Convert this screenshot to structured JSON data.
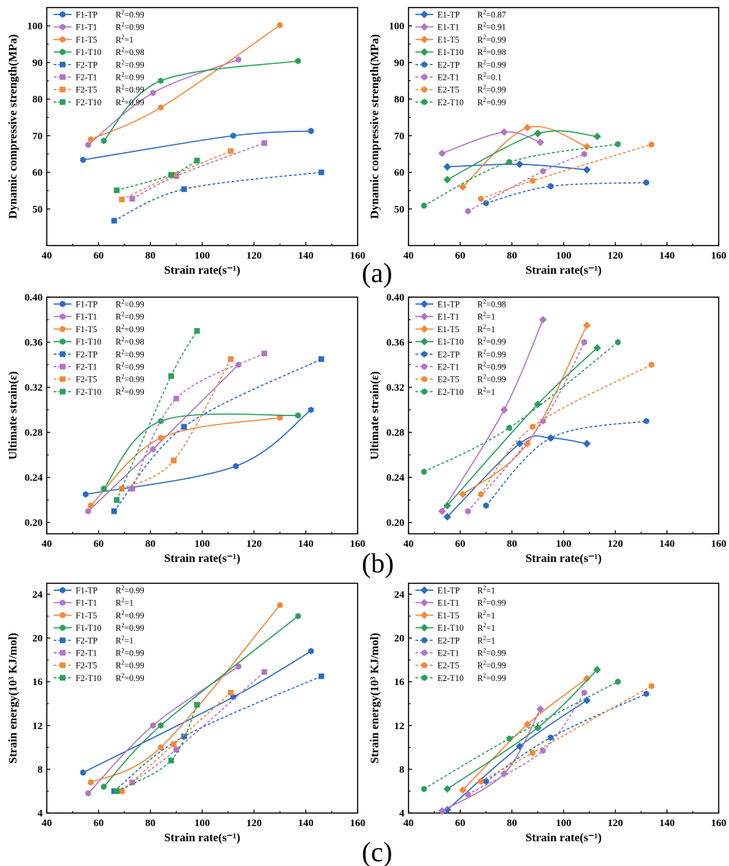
{
  "figure": {
    "panel_labels": [
      "(a)",
      "(b)",
      "(c)"
    ],
    "colors": {
      "TP": "#2b6cc4",
      "T1": "#b474c8",
      "T5": "#f5873a",
      "T10": "#2aa05a"
    }
  },
  "chart_data": [
    {
      "id": "a-left",
      "type": "scatter",
      "xlabel": "Strain rate(s⁻¹)",
      "ylabel": "Dynamic compressive strength(MPa)",
      "xlim": [
        40,
        160
      ],
      "ylim": [
        40,
        105
      ],
      "xticks": [
        40,
        60,
        80,
        100,
        120,
        140,
        160
      ],
      "yticks": [
        50,
        60,
        70,
        80,
        90,
        100
      ],
      "legend_position": "top-left",
      "series": [
        {
          "name": "F1-TP",
          "r2": "0.99",
          "group": "TP",
          "marker": "hex",
          "dashed": false,
          "x": [
            54,
            112,
            142
          ],
          "y": [
            63.4,
            70,
            71.3
          ]
        },
        {
          "name": "F1-T1",
          "r2": "0.99",
          "group": "T1",
          "marker": "hex",
          "dashed": false,
          "x": [
            56,
            81,
            114
          ],
          "y": [
            67.5,
            81.7,
            90.8
          ]
        },
        {
          "name": "F1-T5",
          "r2": "1",
          "group": "T5",
          "marker": "hex",
          "dashed": false,
          "x": [
            57,
            84,
            130
          ],
          "y": [
            69,
            77.7,
            100.2
          ]
        },
        {
          "name": "F1-T10",
          "r2": "0.98",
          "group": "T10",
          "marker": "hex",
          "dashed": false,
          "x": [
            62,
            84,
            137
          ],
          "y": [
            68.6,
            85,
            90.4
          ]
        },
        {
          "name": "F2-TP",
          "r2": "0.99",
          "group": "TP",
          "marker": "square",
          "dashed": true,
          "x": [
            66,
            93,
            146
          ],
          "y": [
            46.8,
            55.4,
            60
          ]
        },
        {
          "name": "F2-T1",
          "r2": "0.99",
          "group": "T1",
          "marker": "square",
          "dashed": true,
          "x": [
            73,
            90,
            124
          ],
          "y": [
            52.8,
            59,
            68
          ]
        },
        {
          "name": "F2-T5",
          "r2": "0.99",
          "group": "T5",
          "marker": "square",
          "dashed": true,
          "x": [
            69,
            89,
            111
          ],
          "y": [
            52.6,
            59.3,
            65.8
          ]
        },
        {
          "name": "F2-T10",
          "r2": "0.99",
          "group": "T10",
          "marker": "square",
          "dashed": true,
          "x": [
            67,
            88,
            98
          ],
          "y": [
            55.1,
            59.3,
            63.2
          ]
        }
      ]
    },
    {
      "id": "a-right",
      "type": "scatter",
      "xlabel": "Strain rate(s⁻¹)",
      "ylabel": "Dynamic compressive strength(MPa)",
      "xlim": [
        40,
        160
      ],
      "ylim": [
        40,
        105
      ],
      "xticks": [
        40,
        60,
        80,
        100,
        120,
        140,
        160
      ],
      "yticks": [
        50,
        60,
        70,
        80,
        90,
        100
      ],
      "legend_position": "top-left",
      "series": [
        {
          "name": "E1-TP",
          "r2": "0.87",
          "group": "TP",
          "marker": "diamond",
          "dashed": false,
          "x": [
            55,
            83,
            109
          ],
          "y": [
            61.5,
            62.2,
            60.7
          ]
        },
        {
          "name": "E1-T1",
          "r2": "0.91",
          "group": "T1",
          "marker": "diamond",
          "dashed": false,
          "x": [
            53,
            77,
            91
          ],
          "y": [
            65.2,
            71,
            68.2
          ]
        },
        {
          "name": "E1-T5",
          "r2": "0.99",
          "group": "T5",
          "marker": "diamond",
          "dashed": false,
          "x": [
            61,
            86,
            109
          ],
          "y": [
            56,
            72.2,
            67
          ]
        },
        {
          "name": "E1-T10",
          "r2": "0.98",
          "group": "T10",
          "marker": "diamond",
          "dashed": false,
          "x": [
            55,
            90,
            113
          ],
          "y": [
            58,
            70.6,
            69.8
          ]
        },
        {
          "name": "E2-TP",
          "r2": "0.99",
          "group": "TP",
          "marker": "hex",
          "dashed": true,
          "x": [
            70,
            95,
            132
          ],
          "y": [
            51.6,
            56.2,
            57.2
          ]
        },
        {
          "name": "E2-T1",
          "r2": "0.1",
          "group": "T1",
          "marker": "hex",
          "dashed": true,
          "x": [
            63,
            92,
            108
          ],
          "y": [
            49.4,
            60.3,
            65
          ]
        },
        {
          "name": "E2-T5",
          "r2": "0.99",
          "group": "T5",
          "marker": "hex",
          "dashed": true,
          "x": [
            68,
            88,
            134
          ],
          "y": [
            52.8,
            57.7,
            67.6
          ]
        },
        {
          "name": "E2-T10",
          "r2": "0.99",
          "group": "T10",
          "marker": "hex",
          "dashed": true,
          "x": [
            46,
            79,
            121
          ],
          "y": [
            50.9,
            62.8,
            67.7
          ]
        }
      ]
    },
    {
      "id": "b-left",
      "type": "scatter",
      "xlabel": "Strain rate(s⁻¹)",
      "ylabel": "Ultimate strain(ε)",
      "xlim": [
        40,
        160
      ],
      "ylim": [
        0.19,
        0.4
      ],
      "xticks": [
        40,
        60,
        80,
        100,
        120,
        140,
        160
      ],
      "yticks": [
        0.2,
        0.24,
        0.28,
        0.32,
        0.36,
        0.4
      ],
      "yformat": "2",
      "legend_position": "top-left",
      "series": [
        {
          "name": "F1-TP",
          "r2": "0.99",
          "group": "TP",
          "marker": "hex",
          "dashed": false,
          "x": [
            55,
            113,
            142
          ],
          "y": [
            0.225,
            0.25,
            0.3
          ]
        },
        {
          "name": "F1-T1",
          "r2": "0.99",
          "group": "T1",
          "marker": "hex",
          "dashed": false,
          "x": [
            56,
            81,
            114
          ],
          "y": [
            0.21,
            0.265,
            0.34
          ]
        },
        {
          "name": "F1-T5",
          "r2": "0.99",
          "group": "T5",
          "marker": "hex",
          "dashed": false,
          "x": [
            57,
            84,
            130
          ],
          "y": [
            0.215,
            0.275,
            0.293
          ]
        },
        {
          "name": "F1-T10",
          "r2": "0.98",
          "group": "T10",
          "marker": "hex",
          "dashed": false,
          "x": [
            62,
            84,
            137
          ],
          "y": [
            0.23,
            0.29,
            0.295
          ]
        },
        {
          "name": "F2-TP",
          "r2": "0.99",
          "group": "TP",
          "marker": "square",
          "dashed": true,
          "x": [
            66,
            93,
            146
          ],
          "y": [
            0.21,
            0.285,
            0.345
          ]
        },
        {
          "name": "F2-T1",
          "r2": "0.99",
          "group": "T1",
          "marker": "square",
          "dashed": true,
          "x": [
            73,
            90,
            124
          ],
          "y": [
            0.23,
            0.31,
            0.35
          ]
        },
        {
          "name": "F2-T5",
          "r2": "0.99",
          "group": "T5",
          "marker": "square",
          "dashed": true,
          "x": [
            69,
            89,
            111
          ],
          "y": [
            0.23,
            0.255,
            0.345
          ]
        },
        {
          "name": "F2-T10",
          "r2": "0.99",
          "group": "T10",
          "marker": "square",
          "dashed": true,
          "x": [
            67,
            88,
            98
          ],
          "y": [
            0.22,
            0.33,
            0.37
          ]
        }
      ]
    },
    {
      "id": "b-right",
      "type": "scatter",
      "xlabel": "Strain rate(s⁻¹)",
      "ylabel": "Ultimate strain(ε)",
      "xlim": [
        40,
        160
      ],
      "ylim": [
        0.19,
        0.4
      ],
      "xticks": [
        40,
        60,
        80,
        100,
        120,
        140,
        160
      ],
      "yticks": [
        0.2,
        0.24,
        0.28,
        0.32,
        0.36,
        0.4
      ],
      "yformat": "2",
      "legend_position": "top-left",
      "series": [
        {
          "name": "E1-TP",
          "r2": "0.98",
          "group": "TP",
          "marker": "diamond",
          "dashed": false,
          "x": [
            55,
            83,
            95,
            109
          ],
          "y": [
            0.205,
            0.27,
            0.275,
            0.27
          ]
        },
        {
          "name": "E1-T1",
          "r2": "1",
          "group": "T1",
          "marker": "diamond",
          "dashed": false,
          "x": [
            53,
            77,
            92
          ],
          "y": [
            0.21,
            0.3,
            0.38
          ]
        },
        {
          "name": "E1-T5",
          "r2": "1",
          "group": "T5",
          "marker": "diamond",
          "dashed": false,
          "x": [
            61,
            86,
            109
          ],
          "y": [
            0.225,
            0.27,
            0.375
          ]
        },
        {
          "name": "E1-T10",
          "r2": "0.99",
          "group": "T10",
          "marker": "diamond",
          "dashed": false,
          "x": [
            55,
            90,
            113
          ],
          "y": [
            0.215,
            0.305,
            0.355
          ]
        },
        {
          "name": "E2-TP",
          "r2": "0.99",
          "group": "TP",
          "marker": "hex",
          "dashed": true,
          "x": [
            70,
            95,
            132
          ],
          "y": [
            0.215,
            0.275,
            0.29
          ]
        },
        {
          "name": "E2-T1",
          "r2": "0.99",
          "group": "T1",
          "marker": "hex",
          "dashed": true,
          "x": [
            63,
            92,
            108
          ],
          "y": [
            0.21,
            0.29,
            0.36
          ]
        },
        {
          "name": "E2-T5",
          "r2": "0.99",
          "group": "T5",
          "marker": "hex",
          "dashed": true,
          "x": [
            68,
            88,
            134
          ],
          "y": [
            0.225,
            0.285,
            0.34
          ]
        },
        {
          "name": "E2-T10",
          "r2": "1",
          "group": "T10",
          "marker": "hex",
          "dashed": true,
          "x": [
            46,
            79,
            121
          ],
          "y": [
            0.245,
            0.284,
            0.36
          ]
        }
      ]
    },
    {
      "id": "c-left",
      "type": "scatter",
      "xlabel": "Strain rate(s⁻¹)",
      "ylabel": "Strain energy(10³ KJ/mol)",
      "xlim": [
        40,
        160
      ],
      "ylim": [
        4,
        25
      ],
      "xticks": [
        40,
        60,
        80,
        100,
        120,
        140,
        160
      ],
      "yticks": [
        4,
        8,
        12,
        16,
        20,
        24
      ],
      "legend_position": "top-left",
      "series": [
        {
          "name": "F1-TP",
          "r2": "0.99",
          "group": "TP",
          "marker": "hex",
          "dashed": false,
          "x": [
            54,
            112,
            142
          ],
          "y": [
            7.7,
            14.6,
            18.8
          ]
        },
        {
          "name": "F1-T1",
          "r2": "1",
          "group": "T1",
          "marker": "hex",
          "dashed": false,
          "x": [
            56,
            81,
            114
          ],
          "y": [
            5.8,
            12,
            17.4
          ]
        },
        {
          "name": "F1-T5",
          "r2": "0.99",
          "group": "T5",
          "marker": "hex",
          "dashed": false,
          "x": [
            57,
            84,
            130
          ],
          "y": [
            6.8,
            10,
            23
          ]
        },
        {
          "name": "F1-T10",
          "r2": "0.99",
          "group": "T10",
          "marker": "hex",
          "dashed": false,
          "x": [
            62,
            84,
            137
          ],
          "y": [
            6.4,
            12,
            22
          ]
        },
        {
          "name": "F2-TP",
          "r2": "1",
          "group": "TP",
          "marker": "square",
          "dashed": true,
          "x": [
            66,
            93,
            146
          ],
          "y": [
            6,
            11,
            16.5
          ]
        },
        {
          "name": "F2-T1",
          "r2": "0.99",
          "group": "T1",
          "marker": "square",
          "dashed": true,
          "x": [
            73,
            90,
            124
          ],
          "y": [
            6.8,
            9.8,
            16.9
          ]
        },
        {
          "name": "F2-T5",
          "r2": "0.99",
          "group": "T5",
          "marker": "square",
          "dashed": true,
          "x": [
            69,
            89,
            111
          ],
          "y": [
            6,
            10.3,
            15
          ]
        },
        {
          "name": "F2-T10",
          "r2": "0.99",
          "group": "T10",
          "marker": "square",
          "dashed": true,
          "x": [
            67,
            88,
            98
          ],
          "y": [
            6,
            8.8,
            13.9
          ]
        }
      ]
    },
    {
      "id": "c-right",
      "type": "scatter",
      "xlabel": "Strain rate(s⁻¹)",
      "ylabel": "Strain energy(10³ KJ/mol)",
      "xlim": [
        40,
        160
      ],
      "ylim": [
        4,
        25
      ],
      "xticks": [
        40,
        60,
        80,
        100,
        120,
        140,
        160
      ],
      "yticks": [
        4,
        8,
        12,
        16,
        20,
        24
      ],
      "legend_position": "top-left",
      "series": [
        {
          "name": "E1-TP",
          "r2": "1",
          "group": "TP",
          "marker": "diamond",
          "dashed": false,
          "x": [
            55,
            83,
            109
          ],
          "y": [
            4.3,
            10.1,
            14.3
          ]
        },
        {
          "name": "E1-T1",
          "r2": "0.99",
          "group": "T1",
          "marker": "diamond",
          "dashed": false,
          "x": [
            53,
            77,
            91
          ],
          "y": [
            4.2,
            7.6,
            13.5
          ]
        },
        {
          "name": "E1-T5",
          "r2": "1",
          "group": "T5",
          "marker": "diamond",
          "dashed": false,
          "x": [
            61,
            86,
            109
          ],
          "y": [
            6.1,
            12.1,
            16.3
          ]
        },
        {
          "name": "E1-T10",
          "r2": "1",
          "group": "T10",
          "marker": "diamond",
          "dashed": false,
          "x": [
            55,
            90,
            113
          ],
          "y": [
            6.2,
            11.8,
            17.1
          ]
        },
        {
          "name": "E2-TP",
          "r2": "1",
          "group": "TP",
          "marker": "hex",
          "dashed": true,
          "x": [
            70,
            95,
            132
          ],
          "y": [
            6.9,
            10.9,
            14.9
          ]
        },
        {
          "name": "E2-T1",
          "r2": "0.99",
          "group": "T1",
          "marker": "hex",
          "dashed": true,
          "x": [
            63,
            92,
            108
          ],
          "y": [
            5.7,
            9.7,
            15
          ]
        },
        {
          "name": "E2-T5",
          "r2": "0.99",
          "group": "T5",
          "marker": "hex",
          "dashed": true,
          "x": [
            68,
            88,
            134
          ],
          "y": [
            6.9,
            9.5,
            15.6
          ]
        },
        {
          "name": "E2-T10",
          "r2": "0.99",
          "group": "T10",
          "marker": "hex",
          "dashed": true,
          "x": [
            46,
            79,
            121
          ],
          "y": [
            6.2,
            10.8,
            16
          ]
        }
      ]
    }
  ]
}
